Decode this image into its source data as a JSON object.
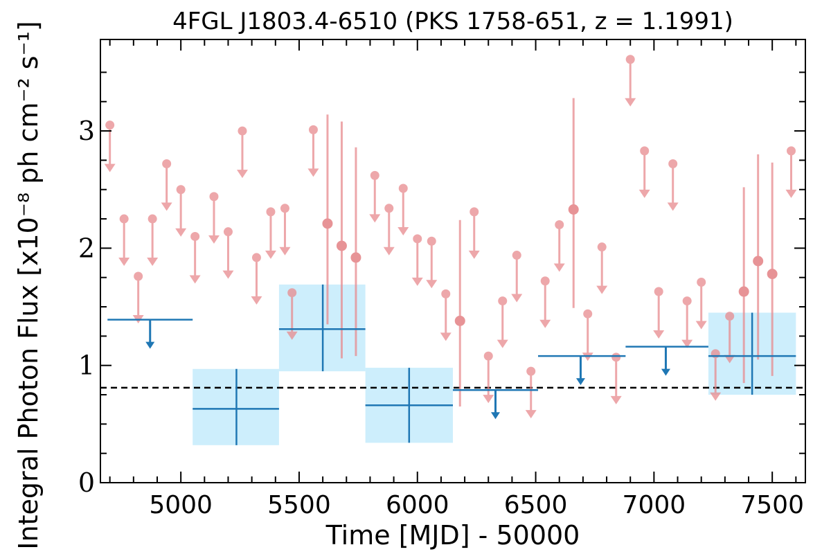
{
  "chart_data": {
    "type": "scatter",
    "title": "4FGL J1803.4-6510 (PKS 1758-651, z = 1.1991)",
    "xlabel": "Time [MJD] - 50000",
    "ylabel": "Integral Photon Flux [x10⁻⁸ ph cm⁻² s⁻¹]",
    "xlim": [
      4660,
      7640
    ],
    "ylim": [
      0,
      3.78
    ],
    "x_ticks": [
      5000,
      5500,
      6000,
      6500,
      7000,
      7500
    ],
    "x_tick_labels": [
      "5000",
      "5500",
      "6000",
      "6500",
      "7000",
      "7500"
    ],
    "y_ticks": [
      0,
      1,
      2,
      3
    ],
    "y_tick_labels": [
      "0",
      "1",
      "2",
      "3"
    ],
    "baseline": 0.81,
    "colors": {
      "monthly": "#e88a8e",
      "monthly_detection": "#e07074",
      "yearly": "#1f77b4",
      "yearly_box": "#cdeefc",
      "baseline": "#000000"
    },
    "series": [
      {
        "kind": "monthly_upper_limits",
        "points": [
          {
            "x": 4700,
            "y": 3.05
          },
          {
            "x": 4760,
            "y": 2.25
          },
          {
            "x": 4820,
            "y": 1.76
          },
          {
            "x": 4880,
            "y": 2.25
          },
          {
            "x": 4940,
            "y": 2.72
          },
          {
            "x": 5000,
            "y": 2.5
          },
          {
            "x": 5060,
            "y": 2.1
          },
          {
            "x": 5140,
            "y": 2.44
          },
          {
            "x": 5200,
            "y": 2.14
          },
          {
            "x": 5260,
            "y": 3.0
          },
          {
            "x": 5320,
            "y": 1.92
          },
          {
            "x": 5380,
            "y": 2.31
          },
          {
            "x": 5440,
            "y": 2.34
          },
          {
            "x": 5470,
            "y": 1.62
          },
          {
            "x": 5560,
            "y": 3.01
          },
          {
            "x": 5820,
            "y": 2.62
          },
          {
            "x": 5880,
            "y": 2.34
          },
          {
            "x": 5940,
            "y": 2.51
          },
          {
            "x": 6000,
            "y": 2.08
          },
          {
            "x": 6060,
            "y": 2.06
          },
          {
            "x": 6120,
            "y": 1.61
          },
          {
            "x": 6240,
            "y": 2.31
          },
          {
            "x": 6300,
            "y": 1.08
          },
          {
            "x": 6360,
            "y": 1.55
          },
          {
            "x": 6420,
            "y": 1.94
          },
          {
            "x": 6480,
            "y": 0.95
          },
          {
            "x": 6540,
            "y": 1.72
          },
          {
            "x": 6600,
            "y": 2.2
          },
          {
            "x": 6720,
            "y": 1.44
          },
          {
            "x": 6780,
            "y": 2.01
          },
          {
            "x": 6840,
            "y": 1.07
          },
          {
            "x": 6900,
            "y": 3.61
          },
          {
            "x": 6960,
            "y": 2.83
          },
          {
            "x": 7020,
            "y": 1.63
          },
          {
            "x": 7080,
            "y": 2.72
          },
          {
            "x": 7140,
            "y": 1.55
          },
          {
            "x": 7200,
            "y": 1.71
          },
          {
            "x": 7260,
            "y": 1.1
          },
          {
            "x": 7320,
            "y": 1.42
          },
          {
            "x": 7580,
            "y": 2.83
          }
        ]
      },
      {
        "kind": "monthly_detections",
        "points": [
          {
            "x": 5620,
            "y": 2.21,
            "lo": 1.35,
            "hi": 3.14
          },
          {
            "x": 5680,
            "y": 2.02,
            "lo": 1.06,
            "hi": 3.08
          },
          {
            "x": 5740,
            "y": 1.92,
            "lo": 1.08,
            "hi": 2.86
          },
          {
            "x": 6180,
            "y": 1.38,
            "lo": 0.65,
            "hi": 2.24
          },
          {
            "x": 6660,
            "y": 2.33,
            "lo": 1.49,
            "hi": 3.28
          },
          {
            "x": 7380,
            "y": 1.63,
            "lo": 0.85,
            "hi": 2.52
          },
          {
            "x": 7440,
            "y": 1.89,
            "lo": 1.05,
            "hi": 2.8
          },
          {
            "x": 7500,
            "y": 1.78,
            "lo": 0.91,
            "hi": 2.73
          }
        ]
      },
      {
        "kind": "yearly_upper_limits",
        "points": [
          {
            "x0": 4690,
            "x1": 5050,
            "y": 1.39,
            "xa": 4870
          },
          {
            "x0": 6150,
            "x1": 6510,
            "y": 0.79,
            "xa": 6330
          },
          {
            "x0": 6510,
            "x1": 6880,
            "y": 1.08,
            "xa": 6690
          },
          {
            "x0": 6880,
            "x1": 7230,
            "y": 1.16,
            "xa": 7050
          }
        ]
      },
      {
        "kind": "yearly_detections",
        "points": [
          {
            "x0": 5050,
            "x1": 5415,
            "xc": 5235,
            "y": 0.63,
            "lo": 0.32,
            "hi": 0.97
          },
          {
            "x0": 5415,
            "x1": 5780,
            "xc": 5600,
            "y": 1.31,
            "lo": 0.95,
            "hi": 1.69
          },
          {
            "x0": 5780,
            "x1": 6150,
            "xc": 5965,
            "y": 0.66,
            "lo": 0.34,
            "hi": 0.98
          },
          {
            "x0": 7230,
            "x1": 7600,
            "xc": 7415,
            "y": 1.08,
            "lo": 0.75,
            "hi": 1.45
          }
        ]
      }
    ]
  }
}
